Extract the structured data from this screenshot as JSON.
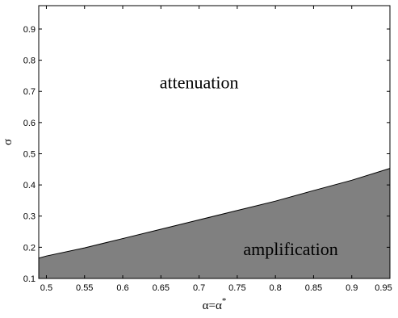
{
  "chart_data": {
    "type": "area",
    "xlabel": "α=α*",
    "xlabel_main": "α=α",
    "xlabel_sup": "*",
    "ylabel": "σ",
    "xlim": [
      0.49,
      0.95
    ],
    "ylim": [
      0.1,
      0.975
    ],
    "xticks": [
      0.5,
      0.55,
      0.6,
      0.65,
      0.7,
      0.75,
      0.8,
      0.85,
      0.9,
      0.95
    ],
    "xtick_labels": [
      "0.5",
      "0.55",
      "0.6",
      "0.65",
      "0.7",
      "0.75",
      "0.8",
      "0.85",
      "0.9",
      "0.95"
    ],
    "yticks": [
      0.1,
      0.2,
      0.3,
      0.4,
      0.5,
      0.6,
      0.7,
      0.8,
      0.9
    ],
    "ytick_labels": [
      "0.1",
      "0.2",
      "0.3",
      "0.4",
      "0.5",
      "0.6",
      "0.7",
      "0.8",
      "0.9"
    ],
    "grid": false,
    "boundary": {
      "x": [
        0.49,
        0.5,
        0.55,
        0.6,
        0.65,
        0.7,
        0.75,
        0.8,
        0.85,
        0.9,
        0.95
      ],
      "y": [
        0.165,
        0.172,
        0.198,
        0.228,
        0.258,
        0.288,
        0.318,
        0.348,
        0.382,
        0.415,
        0.453
      ]
    },
    "regions": [
      {
        "label": "attenuation",
        "x": 0.7,
        "y": 0.71,
        "fill": "#ffffff"
      },
      {
        "label": "amplification",
        "x": 0.82,
        "y": 0.175,
        "fill": "#808080"
      }
    ],
    "colors": {
      "fill": "#808080",
      "line": "#000000",
      "axis": "#000000"
    }
  }
}
